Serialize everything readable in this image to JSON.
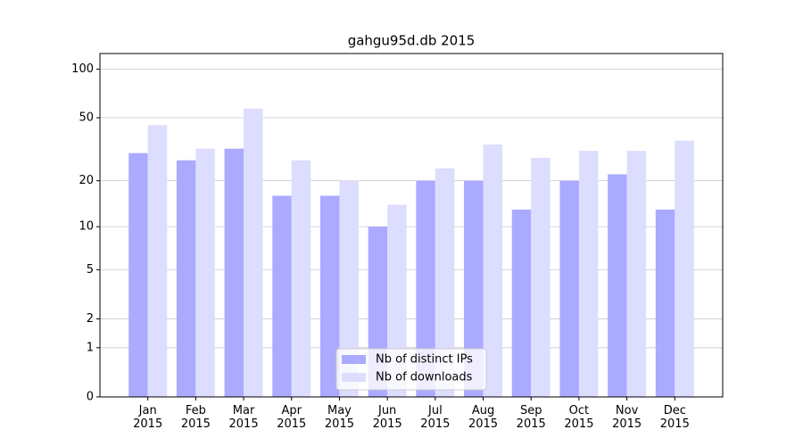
{
  "chart_data": {
    "type": "bar",
    "title": "gahgu95d.db 2015",
    "categories": [
      "Jan 2015",
      "Feb 2015",
      "Mar 2015",
      "Apr 2015",
      "May 2015",
      "Jun 2015",
      "Jul 2015",
      "Aug 2015",
      "Sep 2015",
      "Oct 2015",
      "Nov 2015",
      "Dec 2015"
    ],
    "series": [
      {
        "name": "Nb of distinct IPs",
        "color": "#aaaaff",
        "values": [
          30,
          27,
          32,
          16,
          16,
          10,
          20,
          20,
          13,
          20,
          22,
          13
        ]
      },
      {
        "name": "Nb of downloads",
        "color": "#ddddff",
        "values": [
          45,
          32,
          57,
          27,
          20,
          14,
          24,
          34,
          28,
          31,
          31,
          36
        ]
      }
    ],
    "yscale": "log1p",
    "ylim": [
      0,
      125
    ],
    "yticks": [
      0,
      1,
      2,
      5,
      10,
      20,
      50,
      100
    ],
    "grid": true,
    "legend": "lower center"
  }
}
